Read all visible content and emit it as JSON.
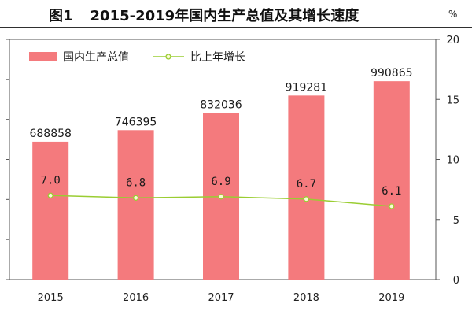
{
  "header": {
    "figure_label": "图1",
    "title_text": "2015-2019年国内生产总值及其增长速度"
  },
  "right_axis_unit": "%",
  "colors": {
    "bar": "#f47a7d",
    "line": "#9acd32",
    "marker_fill": "#fbfbd8",
    "plot_background": "#ffffff"
  },
  "chart_data": {
    "type": "bar",
    "categories": [
      "2015",
      "2016",
      "2017",
      "2018",
      "2019"
    ],
    "series": [
      {
        "name": "国内生产总值",
        "type": "bar",
        "axis": "left",
        "values": [
          688858,
          746395,
          832036,
          919281,
          990865
        ],
        "data_labels": [
          "688858",
          "746395",
          "832036",
          "919281",
          "990865"
        ]
      },
      {
        "name": "比上年增长",
        "type": "line",
        "axis": "right",
        "values": [
          7.0,
          6.8,
          6.9,
          6.7,
          6.1
        ],
        "data_labels": [
          "7.0",
          "6.8",
          "6.9",
          "6.7",
          "6.1"
        ]
      }
    ],
    "y_right": {
      "unit": "%",
      "ylim": [
        0,
        20
      ],
      "ticks": [
        0,
        5,
        10,
        15,
        20
      ]
    },
    "y_left": {
      "ylim": [
        0,
        1200000
      ],
      "ticks": [
        0,
        200000,
        400000,
        600000,
        800000,
        1000000,
        1200000
      ],
      "tick_labels_visible": false
    },
    "legend": {
      "position": "top-left",
      "entries": [
        "国内生产总值",
        "比上年增长"
      ]
    },
    "grid": false
  }
}
